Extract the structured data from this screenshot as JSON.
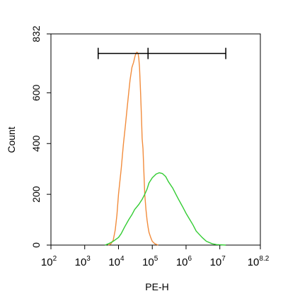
{
  "chart_data": {
    "type": "line",
    "xlabel": "PE-H",
    "ylabel": "Count",
    "x_scale": "log",
    "xlim": [
      100,
      158489319
    ],
    "ylim": [
      0,
      832
    ],
    "x_ticks": [
      {
        "value": 100,
        "base": "10",
        "exp": "2"
      },
      {
        "value": 1000,
        "base": "10",
        "exp": "3"
      },
      {
        "value": 10000,
        "base": "10",
        "exp": "4"
      },
      {
        "value": 100000,
        "base": "10",
        "exp": "5"
      },
      {
        "value": 1000000,
        "base": "10",
        "exp": "6"
      },
      {
        "value": 10000000,
        "base": "10",
        "exp": "7"
      },
      {
        "value": 158489319,
        "base": "10",
        "exp": "8.2"
      }
    ],
    "y_ticks": [
      {
        "value": 0,
        "label": "0"
      },
      {
        "value": 200,
        "label": "200"
      },
      {
        "value": 400,
        "label": "400"
      },
      {
        "value": 600,
        "label": "600"
      },
      {
        "value": 832,
        "label": "832"
      }
    ],
    "gate": {
      "x_start": 2500,
      "x_mid": 75000,
      "x_end": 15000000,
      "y": 755
    },
    "series": [
      {
        "color": "#f28c3c",
        "points": [
          [
            5000,
            0
          ],
          [
            6000,
            5
          ],
          [
            7000,
            20
          ],
          [
            8000,
            60
          ],
          [
            9000,
            120
          ],
          [
            10000,
            200
          ],
          [
            12000,
            300
          ],
          [
            14000,
            400
          ],
          [
            16000,
            470
          ],
          [
            18000,
            540
          ],
          [
            20000,
            600
          ],
          [
            22000,
            650
          ],
          [
            25000,
            700
          ],
          [
            28000,
            720
          ],
          [
            31000,
            745
          ],
          [
            33000,
            755
          ],
          [
            35000,
            760
          ],
          [
            38000,
            755
          ],
          [
            40000,
            735
          ],
          [
            42000,
            700
          ],
          [
            45000,
            600
          ],
          [
            48000,
            500
          ],
          [
            50000,
            420
          ],
          [
            53000,
            380
          ],
          [
            56000,
            300
          ],
          [
            60000,
            200
          ],
          [
            65000,
            140
          ],
          [
            70000,
            100
          ],
          [
            75000,
            70
          ],
          [
            80000,
            50
          ],
          [
            90000,
            30
          ],
          [
            100000,
            15
          ],
          [
            120000,
            5
          ],
          [
            150000,
            0
          ]
        ]
      },
      {
        "color": "#33cc33",
        "points": [
          [
            4000,
            0
          ],
          [
            5000,
            5
          ],
          [
            7000,
            15
          ],
          [
            10000,
            30
          ],
          [
            12000,
            45
          ],
          [
            15000,
            70
          ],
          [
            20000,
            100
          ],
          [
            25000,
            120
          ],
          [
            30000,
            140
          ],
          [
            40000,
            160
          ],
          [
            50000,
            180
          ],
          [
            60000,
            200
          ],
          [
            70000,
            220
          ],
          [
            80000,
            245
          ],
          [
            100000,
            265
          ],
          [
            130000,
            280
          ],
          [
            160000,
            285
          ],
          [
            200000,
            282
          ],
          [
            250000,
            270
          ],
          [
            300000,
            250
          ],
          [
            400000,
            225
          ],
          [
            500000,
            200
          ],
          [
            600000,
            180
          ],
          [
            800000,
            150
          ],
          [
            1000000,
            125
          ],
          [
            1300000,
            100
          ],
          [
            1600000,
            80
          ],
          [
            2000000,
            55
          ],
          [
            3000000,
            30
          ],
          [
            4000000,
            15
          ],
          [
            6000000,
            5
          ],
          [
            8000000,
            2
          ],
          [
            10000000,
            1
          ],
          [
            15000000,
            0
          ]
        ]
      }
    ]
  }
}
